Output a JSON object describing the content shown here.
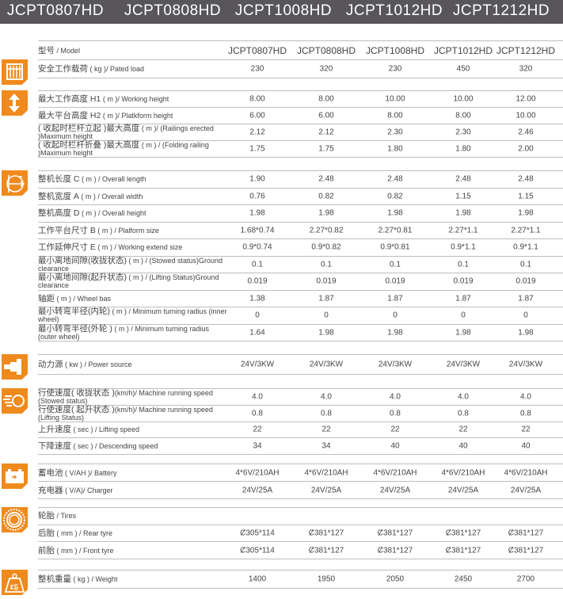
{
  "header": {
    "models": [
      "JCPT0807HD",
      "JCPT0808HD",
      "JCPT1008HD",
      "JCPT1012HD",
      "JCPT1212HD"
    ]
  },
  "colors": {
    "accent": "#f08a1c",
    "header_bg": "#58565a"
  },
  "groups": [
    {
      "icon": "",
      "rows": [
        {
          "zh": "型号",
          "en": " / Model",
          "values": [
            "JCPT0807HD",
            "JCPT0808HD",
            "JCPT1008HD",
            "JCPT1012HD",
            "JCPT1212HD"
          ]
        }
      ]
    },
    {
      "icon": "load-icon",
      "rows": [
        {
          "zh": "安全工作载荷",
          "en": " ( kg )/ Pated load",
          "values": [
            "230",
            "320",
            "230",
            "450",
            "320"
          ]
        }
      ]
    },
    {
      "icon": "height-arrow-icon",
      "rows": [
        {
          "zh": "最大工作高度 H1",
          "en": " ( m )/ Working height",
          "values": [
            "8.00",
            "8.00",
            "10.00",
            "10.00",
            "12.00"
          ]
        },
        {
          "zh": "最大平台高度 H2",
          "en": " ( m )/ Platkform height",
          "values": [
            "6.00",
            "6.00",
            "8.00",
            "8.00",
            "10.00"
          ]
        },
        {
          "zh": "( 收起时栏杆立起 )最大高度",
          "en": " ( m )/ (Railings erected )Maximum height",
          "values": [
            "2.12",
            "2.12",
            "2.30",
            "2.30",
            "2.46"
          ]
        },
        {
          "zh": "( 收起时栏杆折叠 )最大高度",
          "en": " ( m ) / (Folding railing )Maximum height",
          "values": [
            "1.75",
            "1.75",
            "1.80",
            "1.80",
            "2.00"
          ]
        }
      ]
    },
    {
      "icon": "dimensions-icon",
      "rows": [
        {
          "zh": "整机长度 C",
          "en": " ( m ) / Overall length",
          "values": [
            "1.90",
            "2.48",
            "2.48",
            "2.48",
            "2.48"
          ]
        },
        {
          "zh": "整机宽度 A",
          "en": " ( m ) / Overall width",
          "values": [
            "0.76",
            "0.82",
            "0.82",
            "1.15",
            "1.15"
          ]
        },
        {
          "zh": "整机高度 D",
          "en": " ( m ) / Overall height",
          "values": [
            "1.98",
            "1.98",
            "1.98",
            "1.98",
            "1.98"
          ]
        },
        {
          "zh": "工作平台尺寸 B",
          "en": " ( m ) / Plalform size",
          "values": [
            "1.68*0.74",
            "2.27*0.82",
            "2.27*0.81",
            "2.27*1.1",
            "2.27*1.1"
          ]
        },
        {
          "zh": "工作延伸尺寸 E",
          "en": " ( m ) / Working extend size",
          "values": [
            "0.9*0.74",
            "0.9*0.82",
            "0.9*0.81",
            "0.9*1.1",
            "0.9*1.1"
          ]
        },
        {
          "zh": "最小离地间隙(收拢状态)",
          "en": " ( m ) / (Stowed status)Ground clearance",
          "values": [
            "0.1",
            "0.1",
            "0.1",
            "0.1",
            "0.1"
          ]
        },
        {
          "zh": "最小离地间隙(起升状态)",
          "en": " ( m ) / (Lifting Status)Ground clearance",
          "values": [
            "0.019",
            "0.019",
            "0.019",
            "0.019",
            "0.019"
          ]
        },
        {
          "zh": "轴距",
          "en": " ( m ) / Wheel bas",
          "values": [
            "1.38",
            "1.87",
            "1.87",
            "1.87",
            "1.87"
          ]
        },
        {
          "zh": "最小转弯半径(内轮)",
          "en": " ( m ) / Minimum turning radius (inner wheel)",
          "values": [
            "0",
            "0",
            "0",
            "0",
            "0"
          ]
        },
        {
          "zh": "最小转弯半径(外轮 )",
          "en": " ( m ) / Minimum turning radius (outer wheel)",
          "values": [
            "1.64",
            "1.98",
            "1.98",
            "1.98",
            "1.98"
          ]
        }
      ]
    },
    {
      "icon": "power-plug-icon",
      "rows": [
        {
          "zh": "动力源",
          "en": " ( kw ) / Power source",
          "values": [
            "24V/3KW",
            "24V/3KW",
            "24V/3KW",
            "24V/3KW",
            "24V/3KW"
          ]
        }
      ]
    },
    {
      "icon": "speed-icon",
      "rows": [
        {
          "zh": "行使速度( 收拢状态 )",
          "en": "(km/h)/ Machine running speed (Stowed status)",
          "values": [
            "4.0",
            "4.0",
            "4.0",
            "4.0",
            "4.0"
          ]
        },
        {
          "zh": "行使速度( 起升状态 )",
          "en": "(km/h)/ Machine running speed (Lifting Status)",
          "values": [
            "0.8",
            "0.8",
            "0.8",
            "0.8",
            "0.8"
          ]
        },
        {
          "zh": "上升速度",
          "en": " ( sec ) / Lifting speed",
          "values": [
            "22",
            "22",
            "22",
            "22",
            "22"
          ]
        },
        {
          "zh": "下降速度",
          "en": " ( sec ) / Descending speed",
          "values": [
            "34",
            "34",
            "40",
            "40",
            "40"
          ]
        }
      ]
    },
    {
      "icon": "battery-icon",
      "rows": [
        {
          "zh": "蓄电池",
          "en": " ( V/AH )/ Battery",
          "values": [
            "4*6V/210AH",
            "4*6V/210AH",
            "4*6V/210AH",
            "4*6V/210AH",
            "4*6V/210AH"
          ]
        },
        {
          "zh": "充电器",
          "en": " ( V/A)/ Charger",
          "values": [
            "24V/25A",
            "24V/25A",
            "24V/25A",
            "24V/25A",
            "24V/25A"
          ]
        }
      ]
    },
    {
      "icon": "tire-icon",
      "rows": [
        {
          "zh": "轮胎",
          "en": " / Tires",
          "values": [
            "",
            "",
            "",
            "",
            ""
          ]
        },
        {
          "zh": "后胎",
          "en": " ( mm ) / Rear tyre",
          "values": [
            "Ȼ305*114",
            "Ȼ381*127",
            "Ȼ381*127",
            "Ȼ381*127",
            "Ȼ381*127"
          ]
        },
        {
          "zh": "前胎",
          "en": " ( mm ) / Front tyre",
          "values": [
            "Ȼ305*114",
            "Ȼ381*127",
            "Ȼ381*127",
            "Ȼ381*127",
            "Ȼ381*127"
          ]
        }
      ]
    },
    {
      "icon": "weight-kg-icon",
      "rows": [
        {
          "zh": "整机重量",
          "en": " ( kg ) / Weight",
          "values": [
            "1400",
            "1950",
            "2050",
            "2450",
            "2700"
          ]
        }
      ]
    }
  ]
}
